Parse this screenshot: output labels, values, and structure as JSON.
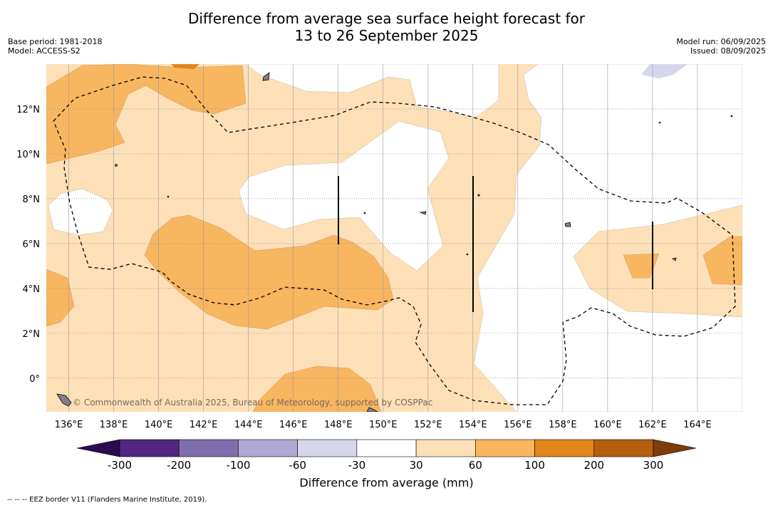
{
  "title_line1": "Difference from average sea surface height forecast for",
  "title_line2": "13 to 26 September 2025",
  "base_period": "Base period: 1981-2018",
  "model": "Model: ACCESS-S2",
  "model_run": "Model run: 06/09/2025",
  "issued": "Issued: 08/09/2025",
  "copyright": "© Commonwealth of Australia 2025, Bureau of Meteorology, supported by COSPPac",
  "footer_note": "--  --  -- EEZ border V11 (Flanders Marine Institute, 2019).",
  "map": {
    "lon_range": [
      135,
      166
    ],
    "lat_range": [
      -1.5,
      14
    ],
    "lon_ticks": [
      "136°E",
      "138°E",
      "140°E",
      "142°E",
      "144°E",
      "146°E",
      "148°E",
      "150°E",
      "152°E",
      "154°E",
      "156°E",
      "158°E",
      "160°E",
      "162°E",
      "164°E"
    ],
    "lat_ticks": [
      "0°",
      "2°N",
      "4°N",
      "6°N",
      "8°N",
      "10°N",
      "12°N"
    ],
    "grid": true
  },
  "colorbar": {
    "label": "Difference from average (mm)",
    "ticks": [
      "-300",
      "-200",
      "-100",
      "-60",
      "-30",
      "30",
      "60",
      "100",
      "200",
      "300"
    ],
    "colors": [
      "#2d0a4e",
      "#532583",
      "#7e6ead",
      "#aeaad2",
      "#d6d7eb",
      "#ffffff",
      "#fde0b8",
      "#f9b660",
      "#e0861b",
      "#b45f0f",
      "#7f3b08"
    ],
    "extend": "both"
  }
}
